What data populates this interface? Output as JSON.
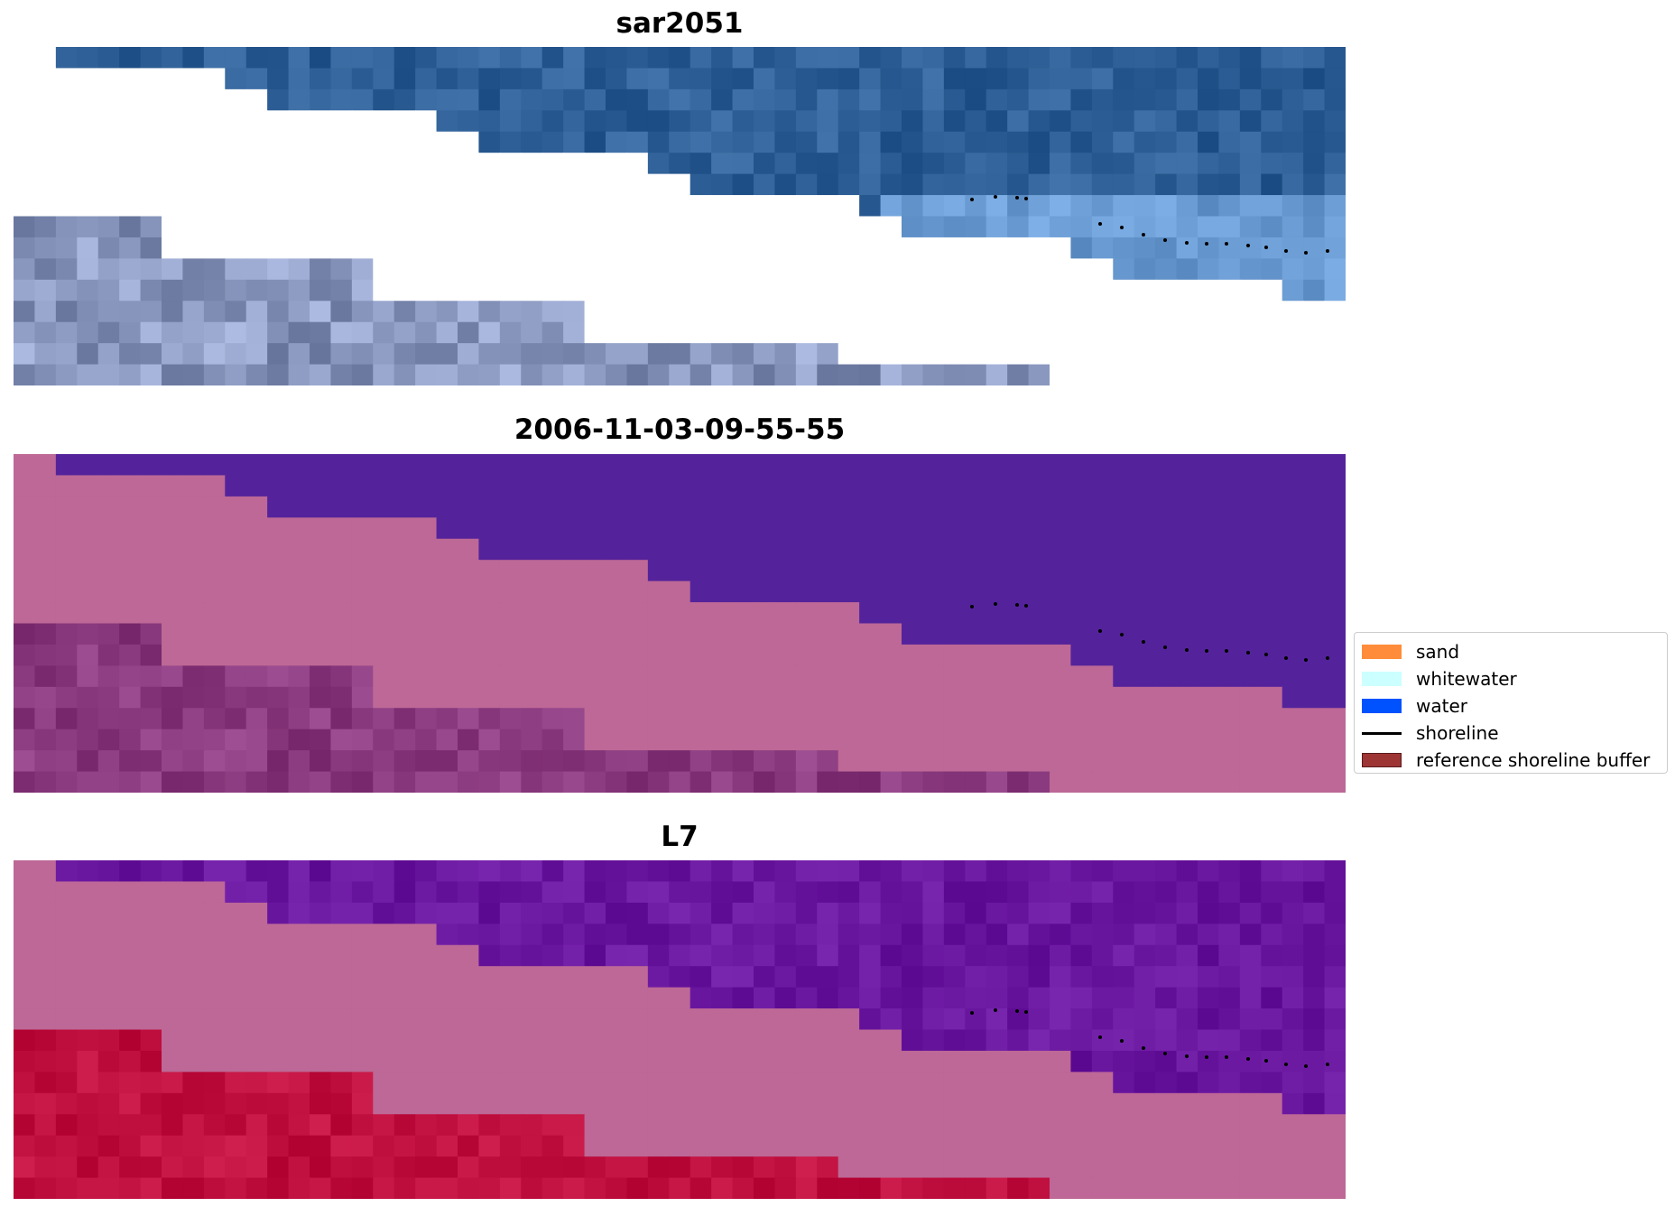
{
  "panels": [
    {
      "title": "sar2051",
      "kind": "rgb"
    },
    {
      "title": "2006-11-03-09-55-55",
      "kind": "classified"
    },
    {
      "title": "L7",
      "kind": "index"
    }
  ],
  "legend": {
    "items": [
      {
        "label": "sand",
        "color": "#ff8c3a",
        "type": "patch"
      },
      {
        "label": "whitewater",
        "color": "#ccffff",
        "type": "patch"
      },
      {
        "label": "water",
        "color": "#0052ff",
        "type": "patch"
      },
      {
        "label": "shoreline",
        "color": "#000000",
        "type": "line"
      },
      {
        "label": "reference shoreline buffer",
        "color": "#9e3535",
        "type": "patch",
        "edge": "#5a1a1a"
      }
    ]
  },
  "colors": {
    "water_rgb": "#2e5f96",
    "land_overlay": "#bd6896",
    "water_class": "#54239b",
    "index_water": "#6a17a0",
    "index_land": "#c01040"
  }
}
